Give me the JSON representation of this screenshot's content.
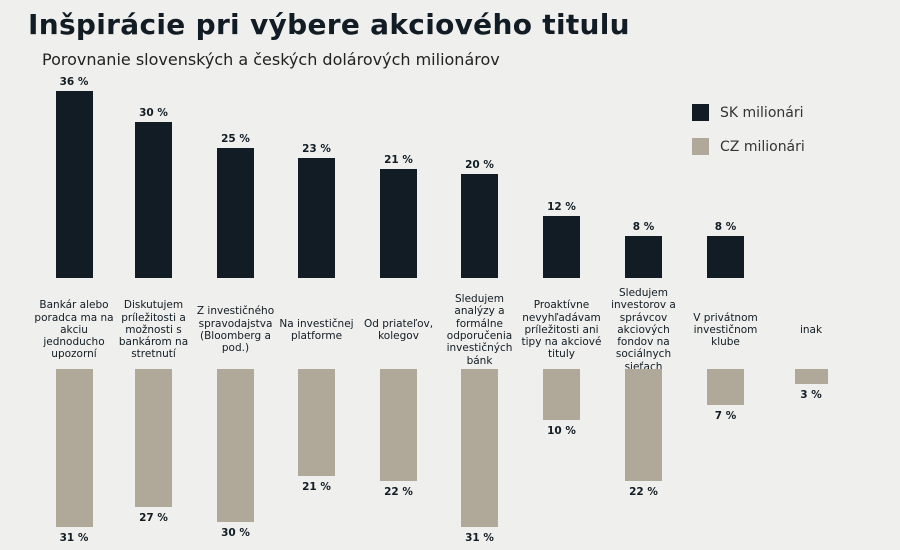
{
  "chart_data": {
    "type": "bar",
    "title": "Inšpirácie pri výbere akciového titulu",
    "subtitle": "Porovnanie slovenských a českých dolárových milionárov",
    "categories": [
      "Bankár alebo poradca ma na akciu jednoducho upozorní",
      "Diskutujem príležitosti a možnosti s bankárom na stretnutí",
      "Z investičného spravodajstva (Bloomberg a pod.)",
      "Na investičnej platforme",
      "Od priateľov, kolegov",
      "Sledujem analýzy a formálne odporučenia investičných bánk",
      "Proaktívne nevyhľadávam príležitosti ani tipy na akciové tituly",
      "Sledujem investorov a správcov akciových fondov na sociálnych sieťach",
      "V privátnom investičnom klube",
      "inak"
    ],
    "series": [
      {
        "name": "SK milionári",
        "color": "#111c24",
        "values": [
          36,
          30,
          25,
          23,
          21,
          20,
          12,
          8,
          8,
          null
        ]
      },
      {
        "name": "CZ milionári",
        "color": "#b0a898",
        "values": [
          31,
          27,
          30,
          21,
          22,
          31,
          10,
          22,
          7,
          3
        ]
      }
    ],
    "unit": "%",
    "legend_position": "top-right",
    "layout_note": "SK bars upward above labels, CZ bars downward below labels"
  }
}
